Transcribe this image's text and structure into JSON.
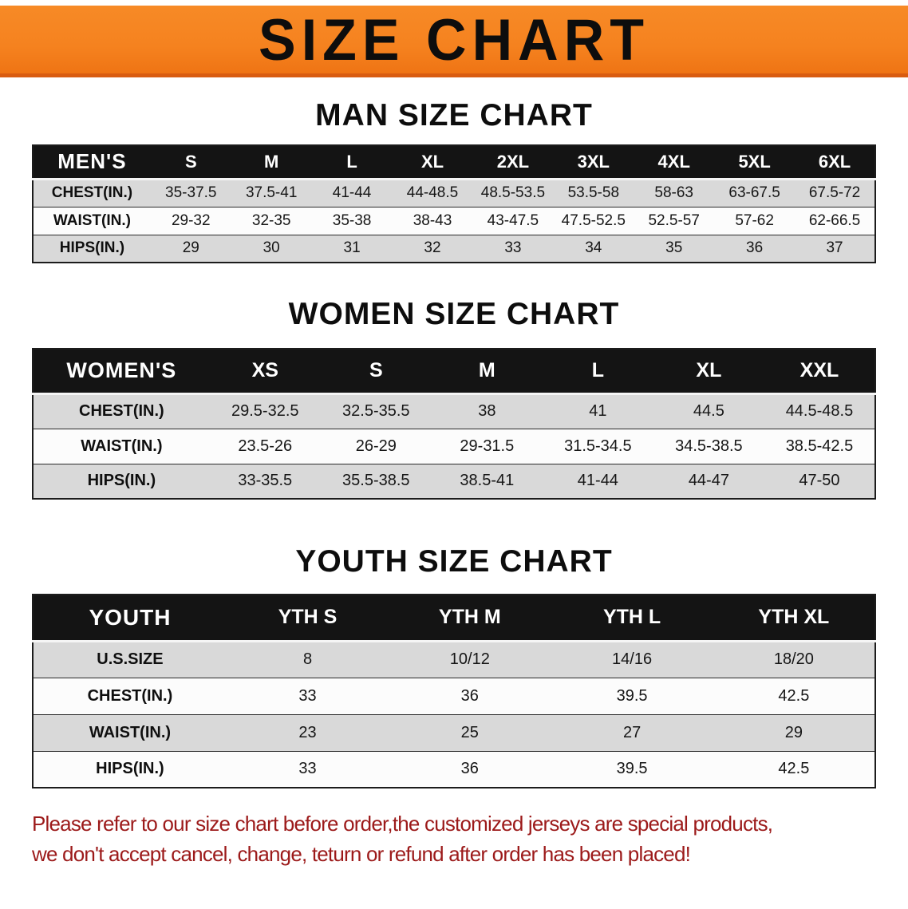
{
  "banner": {
    "title": "SIZE CHART"
  },
  "chart_data": [
    {
      "type": "table",
      "title": "MAN SIZE CHART",
      "columns": [
        "MEN'S",
        "S",
        "M",
        "L",
        "XL",
        "2XL",
        "3XL",
        "4XL",
        "5XL",
        "6XL"
      ],
      "rows": [
        [
          "CHEST(IN.)",
          "35-37.5",
          "37.5-41",
          "41-44",
          "44-48.5",
          "48.5-53.5",
          "53.5-58",
          "58-63",
          "63-67.5",
          "67.5-72"
        ],
        [
          "WAIST(IN.)",
          "29-32",
          "32-35",
          "35-38",
          "38-43",
          "43-47.5",
          "47.5-52.5",
          "52.5-57",
          "57-62",
          "62-66.5"
        ],
        [
          "HIPS(IN.)",
          "29",
          "30",
          "31",
          "32",
          "33",
          "34",
          "35",
          "36",
          "37"
        ]
      ]
    },
    {
      "type": "table",
      "title": "WOMEN SIZE CHART",
      "columns": [
        "WOMEN'S",
        "XS",
        "S",
        "M",
        "L",
        "XL",
        "XXL"
      ],
      "rows": [
        [
          "CHEST(IN.)",
          "29.5-32.5",
          "32.5-35.5",
          "38",
          "41",
          "44.5",
          "44.5-48.5"
        ],
        [
          "WAIST(IN.)",
          "23.5-26",
          "26-29",
          "29-31.5",
          "31.5-34.5",
          "34.5-38.5",
          "38.5-42.5"
        ],
        [
          "HIPS(IN.)",
          "33-35.5",
          "35.5-38.5",
          "38.5-41",
          "41-44",
          "44-47",
          "47-50"
        ]
      ]
    },
    {
      "type": "table",
      "title": "YOUTH SIZE CHART",
      "columns": [
        "YOUTH",
        "YTH S",
        "YTH M",
        "YTH L",
        "YTH XL"
      ],
      "rows": [
        [
          "U.S.SIZE",
          "8",
          "10/12",
          "14/16",
          "18/20"
        ],
        [
          "CHEST(IN.)",
          "33",
          "36",
          "39.5",
          "42.5"
        ],
        [
          "WAIST(IN.)",
          "23",
          "25",
          "27",
          "29"
        ],
        [
          "HIPS(IN.)",
          "33",
          "36",
          "39.5",
          "42.5"
        ]
      ]
    }
  ],
  "disclaimer": {
    "line1": "Please refer to our size chart before order,the customized jerseys are special products,",
    "line2": "we don't accept cancel, change, teturn or refund after order has been placed!"
  },
  "colors": {
    "banner_bg": "#F5821F",
    "banner_edge": "#D95C10",
    "table_header_bg": "#141414",
    "row_stripe": "#D9D9D9",
    "disclaimer_text": "#9C1A1A"
  }
}
